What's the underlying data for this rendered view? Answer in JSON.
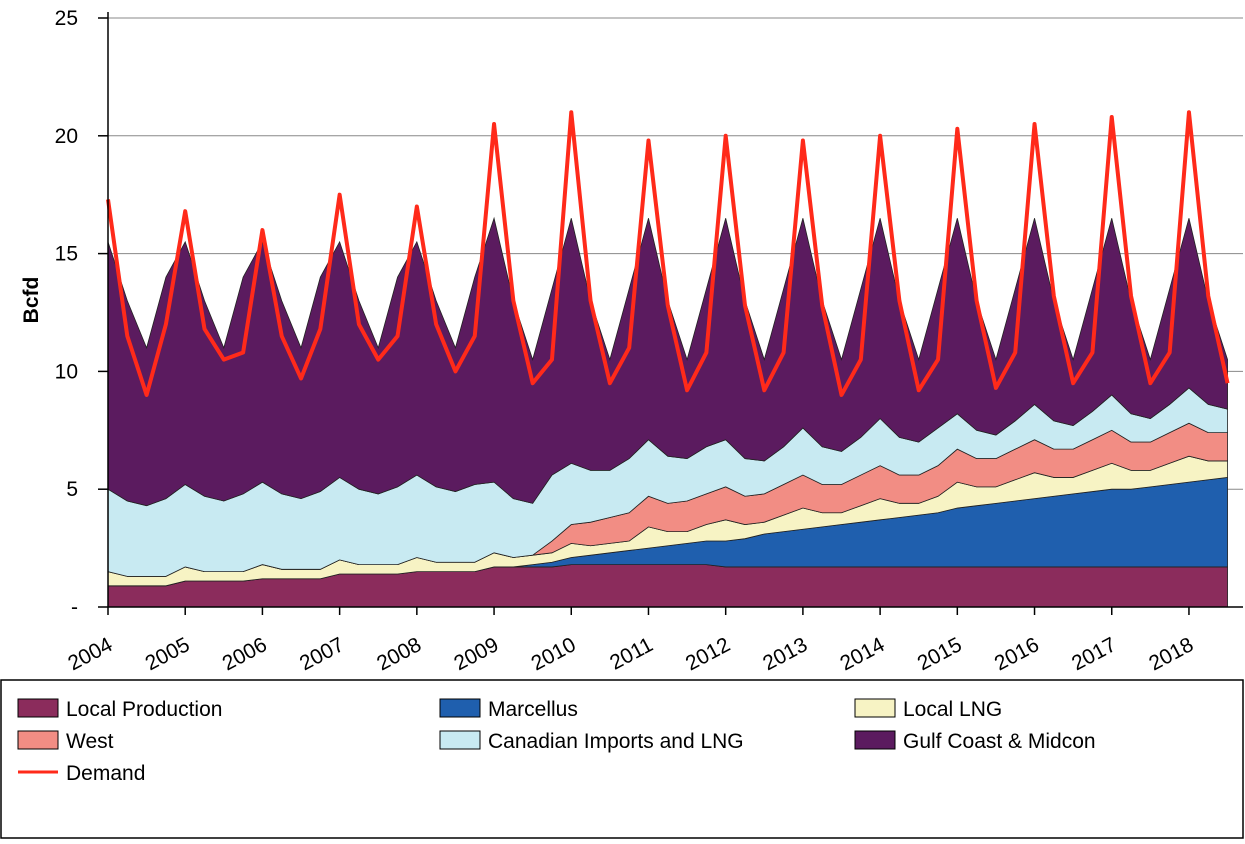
{
  "chart_data": {
    "type": "stacked_area",
    "y_label": "Bcfd",
    "x": [
      2004,
      2004.25,
      2004.5,
      2004.75,
      2005,
      2005.25,
      2005.5,
      2005.75,
      2006,
      2006.25,
      2006.5,
      2006.75,
      2007,
      2007.25,
      2007.5,
      2007.75,
      2008,
      2008.25,
      2008.5,
      2008.75,
      2009,
      2009.25,
      2009.5,
      2009.75,
      2010,
      2010.25,
      2010.5,
      2010.75,
      2011,
      2011.25,
      2011.5,
      2011.75,
      2012,
      2012.25,
      2012.5,
      2012.75,
      2013,
      2013.25,
      2013.5,
      2013.75,
      2014,
      2014.25,
      2014.5,
      2014.75,
      2015,
      2015.25,
      2015.5,
      2015.75,
      2016,
      2016.25,
      2016.5,
      2016.75,
      2017,
      2017.25,
      2017.5,
      2017.75,
      2018,
      2018.25,
      2018.5
    ],
    "series": [
      {
        "name": "Local Production",
        "color": "#8b2c5c",
        "values": [
          0.9,
          0.9,
          0.9,
          0.9,
          1.1,
          1.1,
          1.1,
          1.1,
          1.2,
          1.2,
          1.2,
          1.2,
          1.4,
          1.4,
          1.4,
          1.4,
          1.5,
          1.5,
          1.5,
          1.5,
          1.7,
          1.7,
          1.7,
          1.7,
          1.8,
          1.8,
          1.8,
          1.8,
          1.8,
          1.8,
          1.8,
          1.8,
          1.7,
          1.7,
          1.7,
          1.7,
          1.7,
          1.7,
          1.7,
          1.7,
          1.7,
          1.7,
          1.7,
          1.7,
          1.7,
          1.7,
          1.7,
          1.7,
          1.7,
          1.7,
          1.7,
          1.7,
          1.7,
          1.7,
          1.7,
          1.7,
          1.7,
          1.7,
          1.7
        ]
      },
      {
        "name": "Marcellus",
        "color": "#1f5fae",
        "values": [
          0,
          0,
          0,
          0,
          0,
          0,
          0,
          0,
          0,
          0,
          0,
          0,
          0,
          0,
          0,
          0,
          0,
          0,
          0,
          0,
          0,
          0,
          0.1,
          0.2,
          0.3,
          0.4,
          0.5,
          0.6,
          0.7,
          0.8,
          0.9,
          1.0,
          1.1,
          1.2,
          1.4,
          1.5,
          1.6,
          1.7,
          1.8,
          1.9,
          2.0,
          2.1,
          2.2,
          2.3,
          2.5,
          2.6,
          2.7,
          2.8,
          2.9,
          3.0,
          3.1,
          3.2,
          3.3,
          3.3,
          3.4,
          3.5,
          3.6,
          3.7,
          3.8
        ]
      },
      {
        "name": "Local LNG",
        "color": "#f7f3c4",
        "values": [
          0.6,
          0.4,
          0.4,
          0.4,
          0.6,
          0.4,
          0.4,
          0.4,
          0.6,
          0.4,
          0.4,
          0.4,
          0.6,
          0.4,
          0.4,
          0.4,
          0.6,
          0.4,
          0.4,
          0.4,
          0.6,
          0.4,
          0.4,
          0.4,
          0.6,
          0.4,
          0.4,
          0.4,
          0.9,
          0.6,
          0.5,
          0.7,
          0.9,
          0.6,
          0.5,
          0.7,
          0.9,
          0.6,
          0.5,
          0.7,
          0.9,
          0.6,
          0.5,
          0.7,
          1.1,
          0.8,
          0.7,
          0.9,
          1.1,
          0.8,
          0.7,
          0.9,
          1.1,
          0.8,
          0.7,
          0.9,
          1.1,
          0.8,
          0.7
        ]
      },
      {
        "name": "West",
        "color": "#f28d84",
        "values": [
          0,
          0,
          0,
          0,
          0,
          0,
          0,
          0,
          0,
          0,
          0,
          0,
          0,
          0,
          0,
          0,
          0,
          0,
          0,
          0,
          0,
          0,
          0,
          0.5,
          0.8,
          1.0,
          1.1,
          1.2,
          1.3,
          1.2,
          1.3,
          1.3,
          1.4,
          1.2,
          1.2,
          1.3,
          1.4,
          1.2,
          1.2,
          1.3,
          1.4,
          1.2,
          1.2,
          1.3,
          1.4,
          1.2,
          1.2,
          1.3,
          1.4,
          1.2,
          1.2,
          1.3,
          1.4,
          1.2,
          1.2,
          1.3,
          1.4,
          1.2,
          1.2
        ]
      },
      {
        "name": "Canadian Imports and LNG",
        "color": "#c8eaf2",
        "values": [
          3.5,
          3.2,
          3.0,
          3.3,
          3.5,
          3.2,
          3.0,
          3.3,
          3.5,
          3.2,
          3.0,
          3.3,
          3.5,
          3.2,
          3.0,
          3.3,
          3.5,
          3.2,
          3.0,
          3.3,
          3.0,
          2.5,
          2.2,
          2.8,
          2.6,
          2.2,
          2.0,
          2.3,
          2.4,
          2.0,
          1.8,
          2.0,
          2.0,
          1.6,
          1.4,
          1.6,
          2.0,
          1.6,
          1.4,
          1.6,
          2.0,
          1.6,
          1.4,
          1.6,
          1.5,
          1.2,
          1.0,
          1.2,
          1.5,
          1.2,
          1.0,
          1.2,
          1.5,
          1.2,
          1.0,
          1.2,
          1.5,
          1.2,
          1.0
        ]
      },
      {
        "name": "Gulf Coast & Midcon",
        "color": "#5b1b5f",
        "values": [
          10.5,
          8.5,
          6.7,
          9.4,
          10.3,
          8.3,
          6.5,
          9.2,
          10.2,
          8.2,
          6.4,
          9.1,
          10.0,
          8.0,
          6.2,
          8.9,
          9.9,
          7.9,
          6.1,
          8.8,
          11.2,
          8.4,
          6.1,
          7.9,
          10.4,
          7.2,
          4.7,
          7.2,
          9.4,
          6.6,
          4.2,
          6.7,
          9.4,
          6.7,
          4.3,
          6.7,
          8.9,
          6.2,
          3.9,
          6.3,
          8.5,
          5.8,
          3.5,
          5.9,
          8.3,
          5.5,
          3.2,
          5.6,
          7.9,
          5.1,
          2.8,
          5.2,
          7.5,
          4.8,
          2.5,
          4.9,
          7.2,
          4.4,
          2.1
        ]
      }
    ],
    "demand": {
      "name": "Demand",
      "color": "#ff2a1a",
      "values": [
        17.3,
        11.5,
        9.0,
        12.0,
        16.8,
        11.8,
        10.5,
        10.8,
        16.0,
        11.5,
        9.7,
        11.8,
        17.5,
        12.0,
        10.5,
        11.5,
        17.0,
        12.0,
        10.0,
        11.5,
        20.5,
        13.0,
        9.5,
        10.5,
        21.0,
        13.0,
        9.5,
        11.0,
        19.8,
        12.8,
        9.2,
        10.8,
        20.0,
        12.8,
        9.2,
        10.8,
        19.8,
        12.8,
        9.0,
        10.5,
        20.0,
        13.0,
        9.2,
        10.5,
        20.3,
        13.0,
        9.3,
        10.8,
        20.5,
        13.2,
        9.5,
        10.8,
        20.8,
        13.2,
        9.5,
        10.8,
        21.0,
        13.2,
        9.5
      ]
    },
    "xlim": [
      2004,
      2018.7
    ],
    "xticks": [
      2004,
      2005,
      2006,
      2007,
      2008,
      2009,
      2010,
      2011,
      2012,
      2013,
      2014,
      2015,
      2016,
      2017,
      2018
    ],
    "ylim": [
      0,
      25
    ],
    "yticks": [
      {
        "value": 0,
        "label": "-"
      },
      5,
      10,
      15,
      20,
      25
    ],
    "grid": true
  }
}
